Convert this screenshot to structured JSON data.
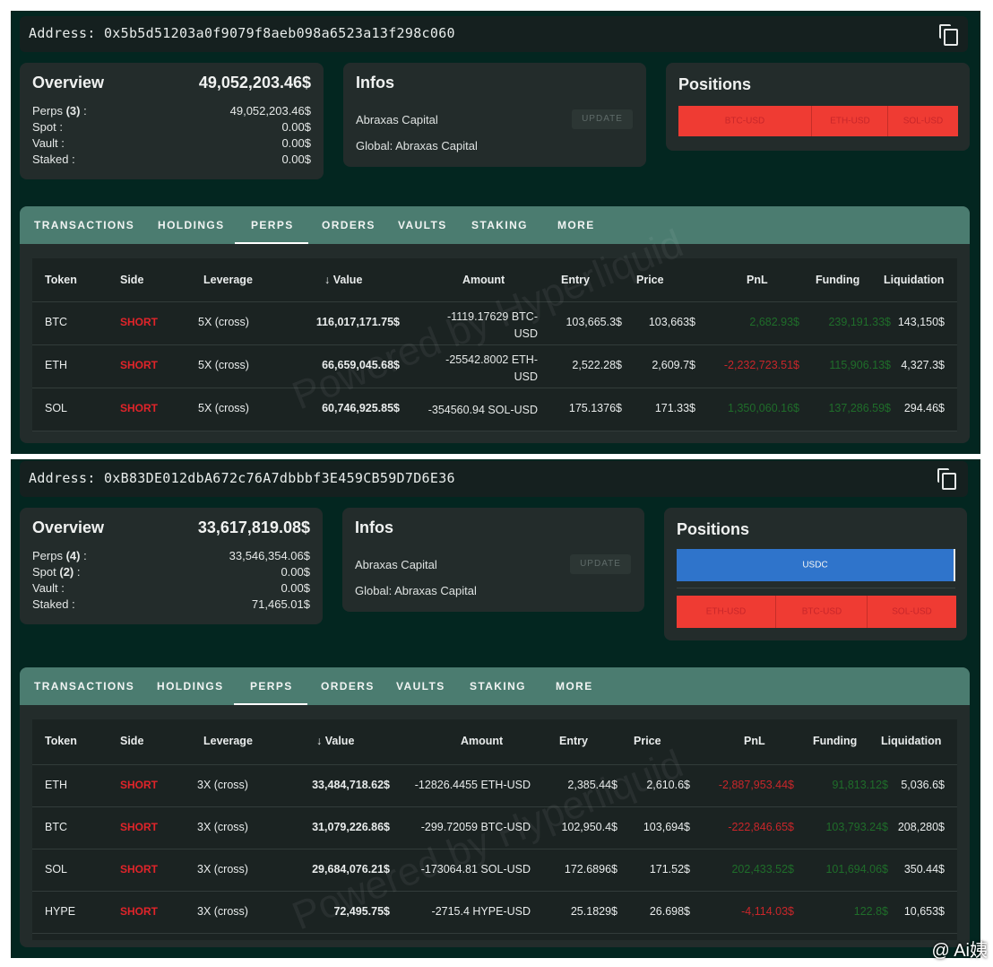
{
  "headers": [
    "Token",
    "Side",
    "Leverage",
    "Value",
    "Amount",
    "Entry",
    "Price",
    "PnL",
    "Funding",
    "Liquidation"
  ],
  "tabs": [
    "TRANSACTIONS",
    "HOLDINGS",
    "PERPS",
    "ORDERS",
    "VAULTS",
    "STAKING",
    "MORE"
  ],
  "watermark": "Powered by Hyperliquid",
  "credit": "@ Ai姨",
  "panel1": {
    "address": "Address: 0x5b5d51203a0f9079f8aeb098a6523a13f298c060",
    "overview": {
      "title": "Overview",
      "total": "49,052,203.46$",
      "perps_label": "Perps",
      "perps_count": "(3)",
      "perps_value": "49,052,203.46$",
      "spot_label": "Spot :",
      "spot_value": "0.00$",
      "vault_label": "Vault :",
      "vault_value": "0.00$",
      "staked_label": "Staked :",
      "staked_value": "0.00$"
    },
    "infos": {
      "title": "Infos",
      "line1": "Abraxas Capital",
      "line2": "Global: Abraxas Capital",
      "update": "UPDATE"
    },
    "positions": {
      "title": "Positions",
      "segments": [
        "BTC-USD",
        "ETH-USD",
        "SOL-USD"
      ]
    },
    "rows": [
      {
        "token": "BTC",
        "side": "SHORT",
        "leverage": "5X (cross)",
        "value": "116,017,171.75$",
        "amount1": "-1119.17629 BTC-",
        "amount2": "USD",
        "entry": "103,665.3$",
        "price": "103,663$",
        "pnl": "2,682.93$",
        "funding": "239,191.33$",
        "liquidation": "143,150$"
      },
      {
        "token": "ETH",
        "side": "SHORT",
        "leverage": "5X (cross)",
        "value": "66,659,045.68$",
        "amount1": "-25542.8002 ETH-",
        "amount2": "USD",
        "entry": "2,522.28$",
        "price": "2,609.7$",
        "pnl": "-2,232,723.51$",
        "funding": "115,906.13$",
        "liquidation": "4,327.3$"
      },
      {
        "token": "SOL",
        "side": "SHORT",
        "leverage": "5X (cross)",
        "value": "60,746,925.85$",
        "amount1": "-354560.94 SOL-USD",
        "amount2": "",
        "entry": "175.1376$",
        "price": "171.33$",
        "pnl": "1,350,060.16$",
        "funding": "137,286.59$",
        "liquidation": "294.46$"
      }
    ]
  },
  "panel2": {
    "address": "Address: 0xB83DE012dbA672c76A7dbbbf3E459CB59D7D6E36",
    "overview": {
      "title": "Overview",
      "total": "33,617,819.08$",
      "perps_label": "Perps",
      "perps_count": "(4)",
      "perps_value": "33,546,354.06$",
      "spot_label": "Spot",
      "spot_count": "(2)",
      "spot_value": "0.00$",
      "vault_label": "Vault :",
      "vault_value": "0.00$",
      "staked_label": "Staked :",
      "staked_value": "71,465.01$"
    },
    "infos": {
      "title": "Infos",
      "line1": "Abraxas Capital",
      "line2": "Global: Abraxas Capital",
      "update": "UPDATE"
    },
    "positions": {
      "title": "Positions",
      "usdc": "USDC",
      "segments": [
        "ETH-USD",
        "BTC-USD",
        "SOL-USD"
      ]
    },
    "rows": [
      {
        "token": "ETH",
        "side": "SHORT",
        "leverage": "3X (cross)",
        "value": "33,484,718.62$",
        "amount": "-12826.4455 ETH-USD",
        "entry": "2,385.44$",
        "price": "2,610.6$",
        "pnl": "-2,887,953.44$",
        "funding": "91,813.12$",
        "liquidation": "5,036.6$"
      },
      {
        "token": "BTC",
        "side": "SHORT",
        "leverage": "3X (cross)",
        "value": "31,079,226.86$",
        "amount": "-299.72059 BTC-USD",
        "entry": "102,950.4$",
        "price": "103,694$",
        "pnl": "-222,846.65$",
        "funding": "103,793.24$",
        "liquidation": "208,280$"
      },
      {
        "token": "SOL",
        "side": "SHORT",
        "leverage": "3X (cross)",
        "value": "29,684,076.21$",
        "amount": "-173064.81 SOL-USD",
        "entry": "172.6896$",
        "price": "171.52$",
        "pnl": "202,433.52$",
        "funding": "101,694.06$",
        "liquidation": "350.44$"
      },
      {
        "token": "HYPE",
        "side": "SHORT",
        "leverage": "3X (cross)",
        "value": "72,495.75$",
        "amount": "-2715.4 HYPE-USD",
        "entry": "25.1829$",
        "price": "26.698$",
        "pnl": "-4,114.03$",
        "funding": "122.8$",
        "liquidation": "10,653$"
      }
    ]
  }
}
